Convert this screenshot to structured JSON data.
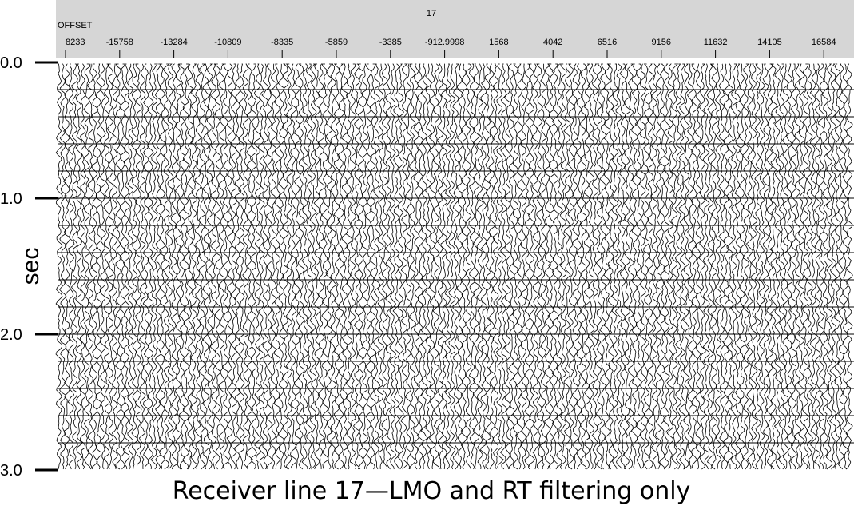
{
  "header": {
    "title": "17",
    "axis_label": "OFFSET",
    "offsets": [
      "8233",
      "-15758",
      "-13284",
      "-10809",
      "-8335",
      "-5859",
      "-3385",
      "-912.9998",
      "1568",
      "4042",
      "6516",
      "9156",
      "11632",
      "14105",
      "16584"
    ]
  },
  "time_axis": {
    "label": "sec",
    "ticks": [
      "0.0",
      "1.0",
      "2.0",
      "3.0"
    ]
  },
  "caption": "Receiver line 17—LMO and RT filtering only"
}
